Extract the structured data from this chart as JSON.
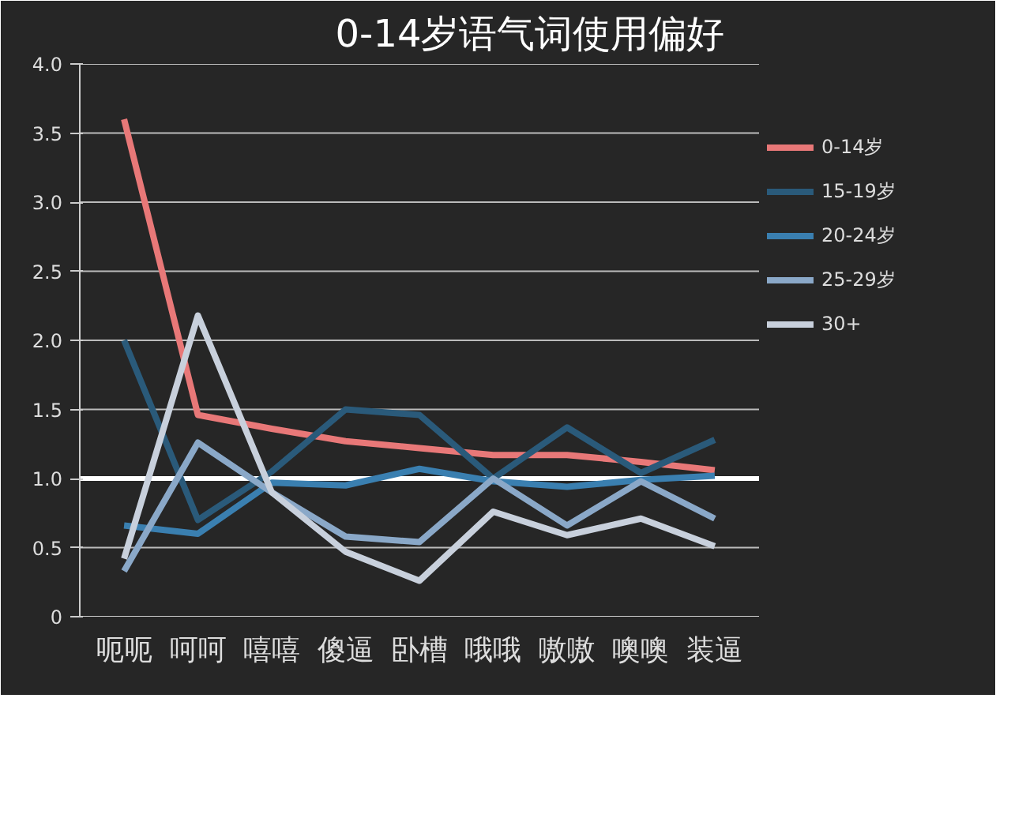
{
  "chart_data": {
    "type": "line",
    "title": "0-14岁语气词使用偏好",
    "categories": [
      "呃呃",
      "呵呵",
      "嘻嘻",
      "傻逼",
      "卧槽",
      "哦哦",
      "嗷嗷",
      "噢噢",
      "装逼"
    ],
    "series": [
      {
        "name": "0-14岁",
        "color": "#e87878",
        "values": [
          3.6,
          1.46,
          1.36,
          1.27,
          1.22,
          1.17,
          1.17,
          1.12,
          1.06
        ]
      },
      {
        "name": "15-19岁",
        "color": "#2a5a7a",
        "values": [
          2.0,
          0.7,
          1.05,
          1.5,
          1.46,
          1.0,
          1.37,
          1.04,
          1.28
        ]
      },
      {
        "name": "20-24岁",
        "color": "#3a7fb0",
        "values": [
          0.66,
          0.6,
          0.97,
          0.95,
          1.07,
          0.98,
          0.94,
          0.99,
          1.02
        ]
      },
      {
        "name": "25-29岁",
        "color": "#8aa8c8",
        "values": [
          0.33,
          1.26,
          0.9,
          0.58,
          0.54,
          1.0,
          0.66,
          0.98,
          0.71
        ]
      },
      {
        "name": "30+",
        "color": "#c8d0dc",
        "values": [
          0.42,
          2.18,
          0.9,
          0.47,
          0.26,
          0.76,
          0.59,
          0.71,
          0.51
        ]
      }
    ],
    "ylim": [
      0,
      4.0
    ],
    "yticks": [
      {
        "value": 0,
        "label": "0"
      },
      {
        "value": 0.5,
        "label": "0.5"
      },
      {
        "value": 1.0,
        "label": "1.0"
      },
      {
        "value": 1.5,
        "label": "1.5"
      },
      {
        "value": 2.0,
        "label": "2.0"
      },
      {
        "value": 2.5,
        "label": "2.5"
      },
      {
        "value": 3.0,
        "label": "3.0"
      },
      {
        "value": 3.5,
        "label": "3.5"
      },
      {
        "value": 4.0,
        "label": "4.0"
      }
    ],
    "ref_lines": [
      {
        "axis": "y",
        "value": 1.0,
        "color": "#ffffff"
      }
    ],
    "grid": "y",
    "legend": "right",
    "marker": "none",
    "line_style": "solid"
  }
}
